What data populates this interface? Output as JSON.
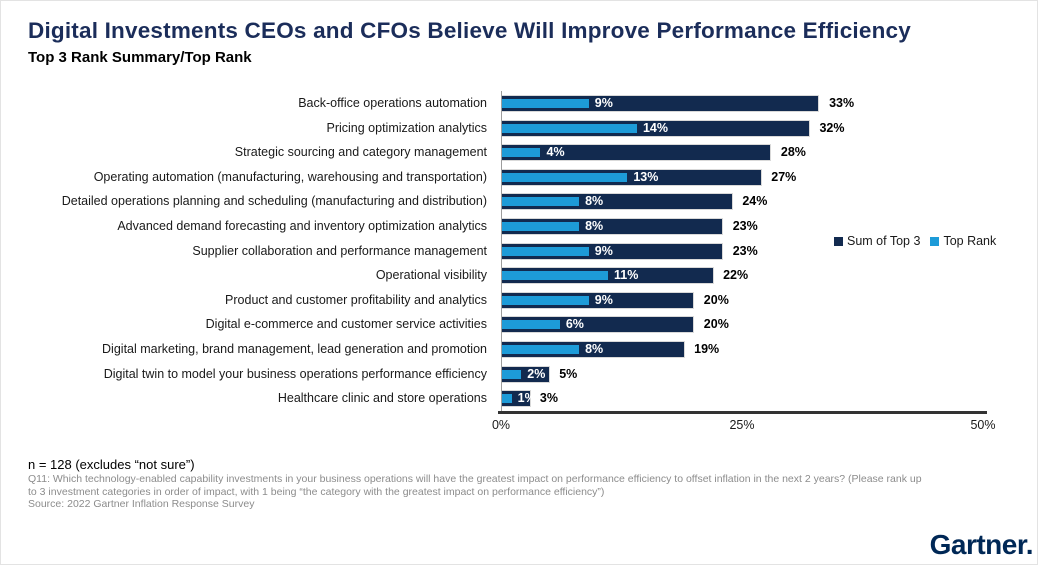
{
  "title": "Digital Investments CEOs and CFOs Believe Will Improve Performance Efficiency",
  "subtitle": "Top 3 Rank Summary/Top Rank",
  "colors": {
    "title_navy": "#1b2d5a",
    "bar_navy": "#122a4f",
    "bar_light_blue": "#1d9bd8",
    "logo_navy": "#002856"
  },
  "chart_data": {
    "type": "bar",
    "orientation": "horizontal",
    "title": "Digital Investments CEOs and CFOs Believe Will Improve Performance Efficiency",
    "subtitle": "Top 3 Rank Summary/Top Rank",
    "categories": [
      "Back-office operations automation",
      "Pricing optimization analytics",
      "Strategic sourcing and category management",
      "Operating automation (manufacturing, warehousing and transportation)",
      "Detailed operations planning and scheduling (manufacturing and distribution)",
      "Advanced demand forecasting and inventory optimization analytics",
      "Supplier collaboration and performance management",
      "Operational visibility",
      "Product and customer profitability and analytics",
      "Digital e-commerce and customer service activities",
      "Digital marketing, brand management, lead generation and promotion",
      "Digital twin to model your business operations performance efficiency",
      "Healthcare clinic and store operations"
    ],
    "series": [
      {
        "name": "Sum of Top 3",
        "color": "#122a4f",
        "values": [
          33,
          32,
          28,
          27,
          24,
          23,
          23,
          22,
          20,
          20,
          19,
          5,
          3
        ]
      },
      {
        "name": "Top Rank",
        "color": "#1d9bd8",
        "values": [
          9,
          14,
          4,
          13,
          8,
          8,
          9,
          11,
          9,
          6,
          8,
          2,
          1
        ]
      }
    ],
    "xlim": [
      0,
      50
    ],
    "x_ticks": [
      {
        "label": "0%",
        "value": 0
      },
      {
        "label": "25%",
        "value": 25
      },
      {
        "label": "50%",
        "value": 50
      }
    ],
    "value_suffix": "%",
    "grid": false,
    "legend_position": "right"
  },
  "legend": [
    {
      "label": "Sum of Top 3",
      "color": "#122a4f"
    },
    {
      "label": "Top Rank",
      "color": "#1d9bd8"
    }
  ],
  "footer": {
    "note": "n = 128 (excludes “not sure”)",
    "question": "Q11: Which technology-enabled capability investments in your business operations will have the greatest impact on performance efficiency to offset inflation in the next 2 years? (Please rank up to 3 investment categories in order of impact, with 1 being “the category with the greatest impact on performance efficiency”)",
    "source": "Source: 2022 Gartner Inflation Response Survey"
  },
  "logo_text": "Gartner."
}
